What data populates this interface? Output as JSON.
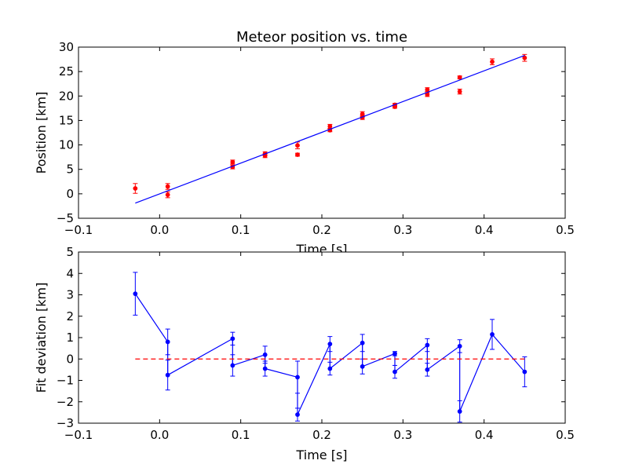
{
  "figure": {
    "background": "#ffffff"
  },
  "chart_data": [
    {
      "type": "scatter",
      "title": "Meteor position vs. time",
      "xlabel": "Time [s]",
      "ylabel": "Position [km]",
      "xlim": [
        -0.1,
        0.5
      ],
      "ylim": [
        -5,
        30
      ],
      "xticks": [
        "−0.1",
        "0.0",
        "0.1",
        "0.2",
        "0.3",
        "0.4",
        "0.5"
      ],
      "yticks": [
        "−5",
        "0",
        "5",
        "10",
        "15",
        "20",
        "25",
        "30"
      ],
      "xtick_values": [
        -0.1,
        0.0,
        0.1,
        0.2,
        0.3,
        0.4,
        0.5
      ],
      "ytick_values": [
        -5,
        0,
        5,
        10,
        15,
        20,
        25,
        30
      ],
      "grid": false,
      "series": [
        {
          "kind": "errorbar",
          "color": "#ff0000",
          "points": [
            {
              "x": -0.03,
              "y": 1.1,
              "err": 1.0
            },
            {
              "x": 0.01,
              "y": 1.5,
              "err": 0.6
            },
            {
              "x": 0.01,
              "y": -0.2,
              "err": 0.6
            },
            {
              "x": 0.09,
              "y": 6.5,
              "err": 0.4
            },
            {
              "x": 0.09,
              "y": 5.5,
              "err": 0.4
            },
            {
              "x": 0.13,
              "y": 8.2,
              "err": 0.4
            },
            {
              "x": 0.13,
              "y": 7.8,
              "err": 0.4
            },
            {
              "x": 0.17,
              "y": 9.9,
              "err": 0.7
            },
            {
              "x": 0.17,
              "y": 8.0,
              "err": 0.3
            },
            {
              "x": 0.21,
              "y": 13.8,
              "err": 0.4
            },
            {
              "x": 0.21,
              "y": 13.0,
              "err": 0.3
            },
            {
              "x": 0.25,
              "y": 16.3,
              "err": 0.5
            },
            {
              "x": 0.25,
              "y": 15.6,
              "err": 0.4
            },
            {
              "x": 0.29,
              "y": 18.2,
              "err": 0.3
            },
            {
              "x": 0.29,
              "y": 17.8,
              "err": 0.3
            },
            {
              "x": 0.33,
              "y": 21.3,
              "err": 0.4
            },
            {
              "x": 0.33,
              "y": 20.3,
              "err": 0.4
            },
            {
              "x": 0.37,
              "y": 23.8,
              "err": 0.3
            },
            {
              "x": 0.37,
              "y": 20.9,
              "err": 0.5
            },
            {
              "x": 0.41,
              "y": 27.0,
              "err": 0.6
            },
            {
              "x": 0.45,
              "y": 27.8,
              "err": 0.7
            }
          ]
        },
        {
          "kind": "line",
          "color": "#0000ff",
          "x": [
            -0.03,
            0.45
          ],
          "y": [
            -1.9,
            28.3
          ]
        }
      ]
    },
    {
      "type": "line",
      "title": "",
      "xlabel": "Time [s]",
      "ylabel": "Fit deviation [km]",
      "xlim": [
        -0.1,
        0.5
      ],
      "ylim": [
        -3,
        5
      ],
      "xticks": [
        "−0.1",
        "0.0",
        "0.1",
        "0.2",
        "0.3",
        "0.4",
        "0.5"
      ],
      "yticks": [
        "−3",
        "−2",
        "−1",
        "0",
        "1",
        "2",
        "3",
        "4",
        "5"
      ],
      "xtick_values": [
        -0.1,
        0.0,
        0.1,
        0.2,
        0.3,
        0.4,
        0.5
      ],
      "ytick_values": [
        -3,
        -2,
        -1,
        0,
        1,
        2,
        3,
        4,
        5
      ],
      "grid": false,
      "series": [
        {
          "kind": "errorbar-line",
          "color": "#0000ff",
          "points": [
            {
              "x": -0.03,
              "y": 3.05,
              "err": 1.0
            },
            {
              "x": 0.01,
              "y": 0.8,
              "err": 0.6
            },
            {
              "x": 0.01,
              "y": -0.75,
              "err": 0.7
            },
            {
              "x": 0.09,
              "y": 0.95,
              "err": 0.3
            },
            {
              "x": 0.09,
              "y": -0.3,
              "err": 0.5
            },
            {
              "x": 0.13,
              "y": 0.2,
              "err": 0.4
            },
            {
              "x": 0.13,
              "y": -0.45,
              "err": 0.35
            },
            {
              "x": 0.17,
              "y": -0.85,
              "err": 0.75
            },
            {
              "x": 0.17,
              "y": -2.6,
              "err": 0.3
            },
            {
              "x": 0.21,
              "y": 0.7,
              "err": 0.35
            },
            {
              "x": 0.21,
              "y": -0.45,
              "err": 0.3
            },
            {
              "x": 0.25,
              "y": 0.75,
              "err": 0.4
            },
            {
              "x": 0.25,
              "y": -0.35,
              "err": 0.35
            },
            {
              "x": 0.29,
              "y": 0.25,
              "err": 0.1
            },
            {
              "x": 0.29,
              "y": -0.6,
              "err": 0.3
            },
            {
              "x": 0.33,
              "y": 0.65,
              "err": 0.3
            },
            {
              "x": 0.33,
              "y": -0.5,
              "err": 0.3
            },
            {
              "x": 0.37,
              "y": 0.6,
              "err": 0.3
            },
            {
              "x": 0.37,
              "y": -2.45,
              "err": 0.5
            },
            {
              "x": 0.41,
              "y": 1.15,
              "err": 0.7
            },
            {
              "x": 0.45,
              "y": -0.6,
              "err": 0.7
            }
          ]
        },
        {
          "kind": "dashed-line",
          "color": "#ff0000",
          "x": [
            -0.03,
            0.45
          ],
          "y": [
            0,
            0
          ]
        }
      ]
    }
  ]
}
